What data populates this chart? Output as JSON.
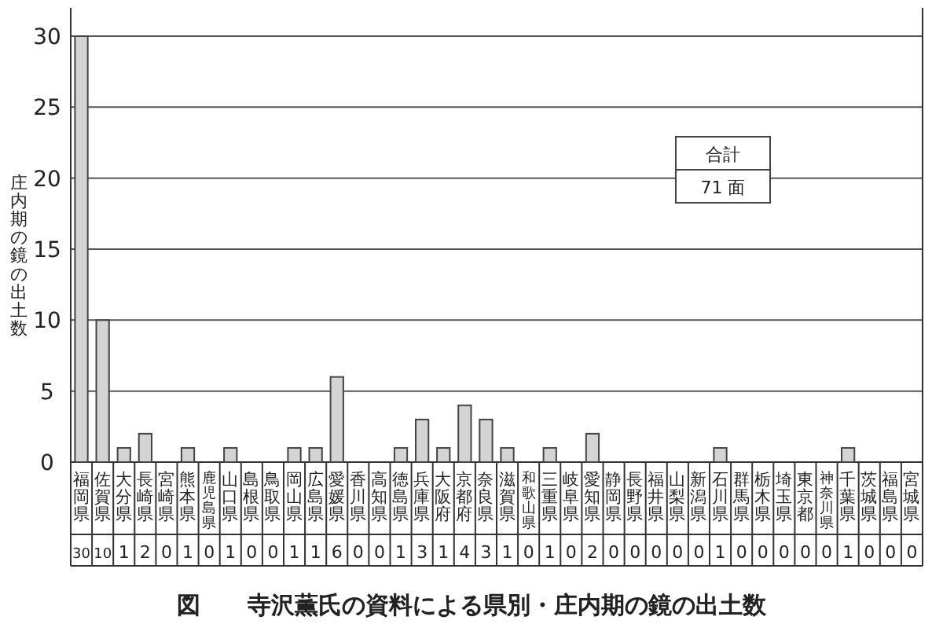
{
  "chart_data": {
    "type": "bar",
    "title": "図　　寺沢薫氏の資料による県別・庄内期の鏡の出土数",
    "ylabel": "庄内期の鏡の出土数",
    "categories": [
      "福岡県",
      "佐賀県",
      "大分県",
      "長崎県",
      "宮崎県",
      "熊本県",
      "鹿児島県",
      "山口県",
      "島根県",
      "鳥取県",
      "岡山県",
      "広島県",
      "愛媛県",
      "香川県",
      "高知県",
      "徳島県",
      "兵庫県",
      "大阪府",
      "京都府",
      "奈良県",
      "滋賀県",
      "和歌山県",
      "三重県",
      "岐阜県",
      "愛知県",
      "静岡県",
      "長野県",
      "福井県",
      "山梨県",
      "新潟県",
      "石川県",
      "群馬県",
      "栃木県",
      "埼玉県",
      "東京都",
      "神奈川県",
      "千葉県",
      "茨城県",
      "福島県",
      "宮城県"
    ],
    "values": [
      30,
      10,
      1,
      2,
      0,
      1,
      0,
      1,
      0,
      0,
      1,
      1,
      6,
      0,
      0,
      1,
      3,
      1,
      4,
      3,
      1,
      0,
      1,
      0,
      2,
      0,
      0,
      0,
      0,
      0,
      1,
      0,
      0,
      0,
      0,
      0,
      1,
      0,
      0,
      0
    ],
    "color": "#d4d4d4",
    "ylim": [
      0,
      30
    ],
    "yticks": [
      0,
      5,
      10,
      15,
      20,
      25,
      30
    ],
    "grid": "y",
    "data_labels": true,
    "annotations": [
      "合計",
      "71 面"
    ]
  }
}
